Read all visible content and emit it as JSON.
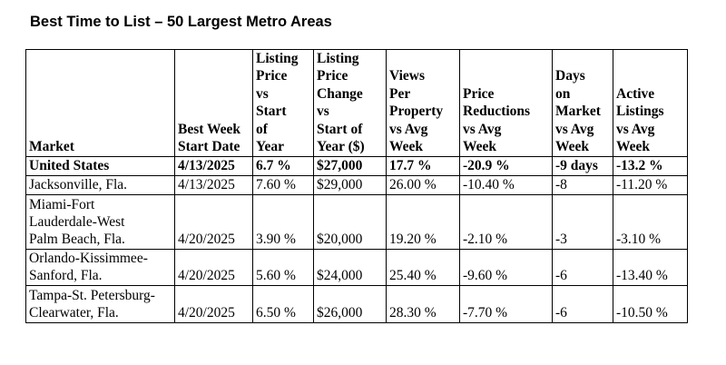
{
  "title": "Best Time to List – 50 Largest Metro Areas",
  "table": {
    "headers": [
      [
        "Market"
      ],
      [
        "Best Week",
        "Start Date"
      ],
      [
        "Listing",
        "Price",
        "vs",
        "Start",
        "of",
        "Year"
      ],
      [
        "Listing",
        "Price",
        "Change",
        "vs",
        "Start of",
        "Year ($)"
      ],
      [
        "Views",
        "Per",
        "Property",
        "vs Avg",
        "Week"
      ],
      [
        "Price",
        "Reductions",
        "vs Avg",
        "Week"
      ],
      [
        "Days",
        "on",
        "Market",
        "vs Avg",
        "Week"
      ],
      [
        "Active",
        "Listings",
        "vs Avg",
        "Week"
      ]
    ],
    "rows": [
      {
        "market": [
          "United States"
        ],
        "start_date": "4/13/2025",
        "price_vs_start": "6.7 %",
        "price_change": "$27,000",
        "views": "17.7 %",
        "reductions": "-20.9 %",
        "days_on_market": "-9 days",
        "active_listings": "-13.2 %"
      },
      {
        "market": [
          "Jacksonville, Fla."
        ],
        "start_date": "4/13/2025",
        "price_vs_start": "7.60 %",
        "price_change": "$29,000",
        "views": "26.00 %",
        "reductions": "-10.40 %",
        "days_on_market": "-8",
        "active_listings": "-11.20 %"
      },
      {
        "market": [
          "Miami-Fort",
          "Lauderdale-West",
          "Palm Beach, Fla."
        ],
        "start_date": "4/20/2025",
        "price_vs_start": "3.90 %",
        "price_change": "$20,000",
        "views": "19.20 %",
        "reductions": "-2.10 %",
        "days_on_market": "-3",
        "active_listings": "-3.10 %"
      },
      {
        "market": [
          "Orlando-Kissimmee-",
          "Sanford, Fla."
        ],
        "start_date": "4/20/2025",
        "price_vs_start": "5.60 %",
        "price_change": "$24,000",
        "views": "25.40 %",
        "reductions": "-9.60 %",
        "days_on_market": "-6",
        "active_listings": "-13.40 %"
      },
      {
        "market": [
          "Tampa-St. Petersburg-",
          "Clearwater, Fla."
        ],
        "start_date": "4/20/2025",
        "price_vs_start": "6.50 %",
        "price_change": "$26,000",
        "views": "28.30 %",
        "reductions": "-7.70 %",
        "days_on_market": "-6",
        "active_listings": "-10.50 %"
      }
    ]
  }
}
